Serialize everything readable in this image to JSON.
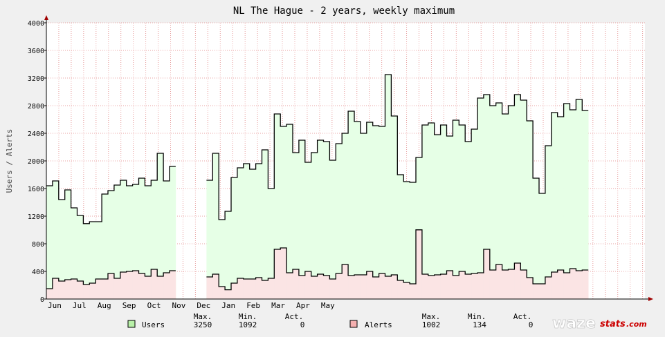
{
  "chart_data": {
    "type": "area",
    "title": "NL The Hague - 2 years, weekly maximum",
    "ylabel": "Users / Alerts",
    "xlabel": "",
    "ylim": [
      0,
      4000
    ],
    "yticks": [
      0,
      400,
      800,
      1200,
      1600,
      2000,
      2400,
      2800,
      3200,
      3600,
      4000
    ],
    "xticks": [
      "Jun",
      "Jul",
      "Aug",
      "Sep",
      "Oct",
      "Nov",
      "Dec",
      "Jan",
      "Feb",
      "Mar",
      "Apr",
      "May"
    ],
    "grid": true,
    "x_unit": "week index (0 = start of Jun)",
    "series": [
      {
        "name": "Users",
        "color": "#000000",
        "fill": "#e6ffe6",
        "swatch": "#b8f0a8",
        "values": [
          1640,
          1710,
          1440,
          1580,
          1320,
          1210,
          1092,
          1120,
          1120,
          1520,
          1570,
          1650,
          1720,
          1640,
          1660,
          1750,
          1640,
          1720,
          2110,
          1710,
          1920,
          null,
          null,
          null,
          null,
          null,
          1720,
          2110,
          1150,
          1270,
          1760,
          1900,
          1960,
          1880,
          1960,
          2160,
          1600,
          2680,
          2500,
          2530,
          2120,
          2300,
          1980,
          2120,
          2300,
          2280,
          2010,
          2250,
          2400,
          2720,
          2570,
          2400,
          2560,
          2510,
          2500,
          3250,
          2650,
          1800,
          1700,
          1690,
          2050,
          2520,
          2550,
          2380,
          2520,
          2360,
          2590,
          2520,
          2280,
          2460,
          2910,
          2960,
          2800,
          2840,
          2680,
          2800,
          2960,
          2880,
          2580,
          1750,
          1530,
          2220,
          2700,
          2640,
          2830,
          2740,
          2890,
          2730
        ],
        "max": "3250",
        "min": "1092",
        "act": "0"
      },
      {
        "name": "Alerts",
        "color": "#000000",
        "fill": "#fbe4e4",
        "swatch": "#f5b0b0",
        "values": [
          150,
          300,
          260,
          280,
          290,
          260,
          210,
          230,
          290,
          290,
          370,
          300,
          390,
          400,
          410,
          370,
          330,
          430,
          330,
          380,
          410,
          null,
          null,
          null,
          null,
          null,
          320,
          360,
          180,
          134,
          230,
          300,
          290,
          290,
          310,
          270,
          300,
          720,
          740,
          380,
          430,
          340,
          400,
          330,
          360,
          340,
          290,
          370,
          500,
          340,
          350,
          350,
          400,
          320,
          370,
          330,
          350,
          270,
          240,
          220,
          1002,
          360,
          340,
          350,
          360,
          410,
          340,
          400,
          360,
          370,
          380,
          720,
          420,
          500,
          420,
          430,
          520,
          420,
          310,
          220,
          220,
          320,
          390,
          420,
          380,
          440,
          410,
          420
        ],
        "max": "1002",
        "min": "134",
        "act": "0"
      }
    ]
  },
  "legend": {
    "headers": {
      "max": "Max.",
      "min": "Min.",
      "act": "Act."
    }
  },
  "watermark": {
    "part1": "waze",
    "part2": "stats",
    "part3": ".com"
  }
}
